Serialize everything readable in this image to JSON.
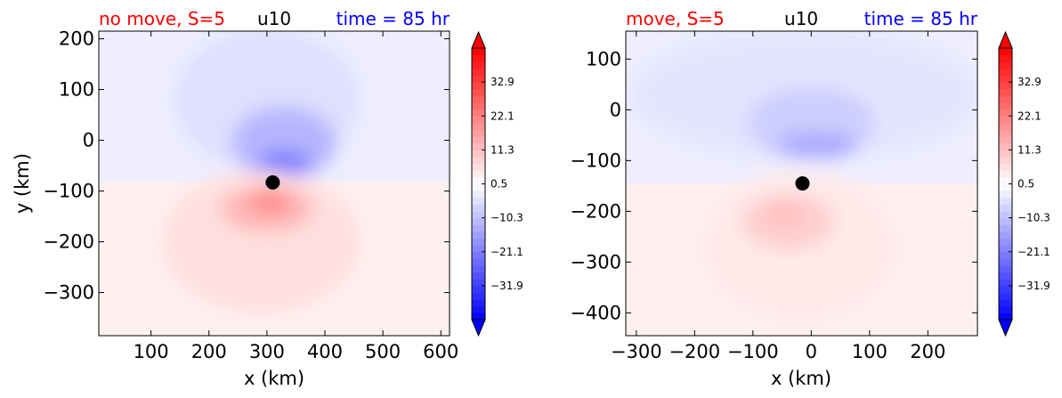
{
  "chart_data": [
    {
      "type": "heatmap",
      "title_left": "no move, S=5",
      "title_center": "u10",
      "title_right": "time = 85 hr",
      "title_left_color": "#ff0000",
      "title_center_color": "#000000",
      "title_right_color": "#0000ff",
      "xlabel": "x (km)",
      "ylabel": "y (km)",
      "xlim": [
        10,
        615
      ],
      "ylim": [
        -385,
        215
      ],
      "xticks": [
        100,
        200,
        300,
        400,
        500,
        600
      ],
      "yticks": [
        200,
        100,
        0,
        -100,
        -200,
        -300
      ],
      "marker": {
        "x": 310,
        "y": -83
      },
      "field": {
        "background": "#fff0f0",
        "blobs": [
          {
            "x": 300,
            "y": 80,
            "rx": 160,
            "ry": 140,
            "level": -5
          },
          {
            "x": 330,
            "y": -5,
            "rx": 90,
            "ry": 70,
            "level": -12
          },
          {
            "x": 330,
            "y": -45,
            "rx": 45,
            "ry": 25,
            "level": -22
          },
          {
            "x": 290,
            "y": -200,
            "rx": 170,
            "ry": 140,
            "level": 6
          },
          {
            "x": 300,
            "y": -135,
            "rx": 80,
            "ry": 45,
            "level": 13
          },
          {
            "x": 305,
            "y": -120,
            "rx": 35,
            "ry": 18,
            "level": 22
          }
        ]
      },
      "colorbar": {
        "ticks": [
          "32.9",
          "22.1",
          "11.3",
          "0.5",
          "−10.3",
          "−21.1",
          "−31.9"
        ],
        "tick_values": [
          32.9,
          22.1,
          11.3,
          0.5,
          -10.3,
          -21.1,
          -31.9
        ],
        "vmin": -42.7,
        "vmax": 43.7,
        "colormap": "bwr"
      }
    },
    {
      "type": "heatmap",
      "title_left": "move, S=5",
      "title_center": "u10",
      "title_right": "time = 85 hr",
      "title_left_color": "#ff0000",
      "title_center_color": "#000000",
      "title_right_color": "#0000ff",
      "xlabel": "x (km)",
      "ylabel": "",
      "xlim": [
        -318,
        285
      ],
      "ylim": [
        -445,
        155
      ],
      "xticks": [
        -300,
        -200,
        -100,
        0,
        100,
        200
      ],
      "yticks": [
        100,
        0,
        -100,
        -200,
        -300,
        -400
      ],
      "marker": {
        "x": -15,
        "y": -145
      },
      "field": {
        "background": "#fff0f0",
        "blobs": [
          {
            "x": -10,
            "y": 30,
            "rx": 300,
            "ry": 130,
            "level": -4
          },
          {
            "x": 0,
            "y": -25,
            "rx": 110,
            "ry": 70,
            "level": -8
          },
          {
            "x": 10,
            "y": -70,
            "rx": 70,
            "ry": 25,
            "level": -14
          },
          {
            "x": -20,
            "y": -270,
            "rx": 170,
            "ry": 150,
            "level": 4
          },
          {
            "x": -40,
            "y": -220,
            "rx": 80,
            "ry": 55,
            "level": 9
          },
          {
            "x": -45,
            "y": -205,
            "rx": 30,
            "ry": 15,
            "level": 13
          }
        ]
      },
      "colorbar": {
        "ticks": [
          "32.9",
          "22.1",
          "11.3",
          "0.5",
          "−10.3",
          "−21.1",
          "−31.9"
        ],
        "tick_values": [
          32.9,
          22.1,
          11.3,
          0.5,
          -10.3,
          -21.1,
          -31.9
        ],
        "vmin": -42.7,
        "vmax": 43.7,
        "colormap": "bwr"
      }
    }
  ]
}
